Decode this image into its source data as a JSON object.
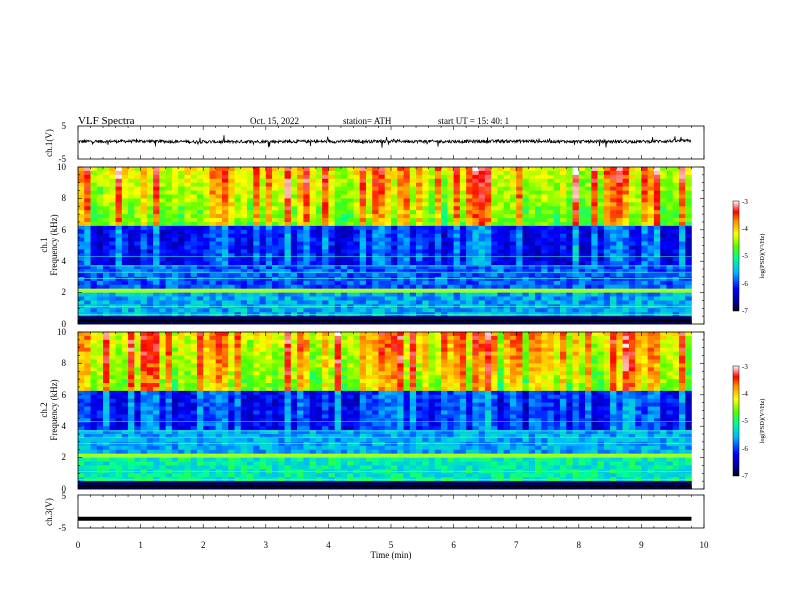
{
  "header": {
    "title": "VLF  Spectra",
    "date": "Oct. 15, 2022",
    "station": "station= ATH",
    "start": "start  UT  =    15: 40: 1"
  },
  "chart_data": [
    {
      "type": "line",
      "panel": "ch1-waveform",
      "ylabel": "ch.1(V)",
      "ylim": [
        -5,
        5
      ],
      "y_ticks": [
        "5",
        "-5"
      ],
      "x": [
        0,
        1,
        2,
        3,
        4,
        5,
        6,
        7,
        8,
        9,
        9.8
      ],
      "series": [
        {
          "values": [
            0.3,
            0.4,
            0.2,
            0.3,
            0.3,
            0.4,
            0.3,
            0.4,
            0.3,
            0.3,
            0.5
          ]
        }
      ],
      "xlim": [
        0,
        10
      ]
    },
    {
      "type": "heatmap",
      "panel": "ch1-spectrogram",
      "ylabel": "ch.1\nFrequency  (kHz)",
      "ylabel_lines": [
        "ch.1",
        "Frequency  (kHz)"
      ],
      "ylim": [
        0,
        10
      ],
      "y_ticks": [
        "0",
        "2",
        "4",
        "6",
        "8",
        "10"
      ],
      "xlim": [
        0,
        10
      ],
      "data_extent_min": 9.8,
      "colorbar": {
        "label": "log(PSD)(V²/Hz)",
        "ticks": [
          "-3",
          "-4",
          "-5",
          "-6",
          "-7"
        ],
        "range": [
          -7,
          -3
        ]
      }
    },
    {
      "type": "heatmap",
      "panel": "ch2-spectrogram",
      "ylabel": "ch.2\nFrequency  (kHz)",
      "ylabel_lines": [
        "ch.2",
        "Frequency  (kHz)"
      ],
      "ylim": [
        0,
        10
      ],
      "y_ticks": [
        "0",
        "2",
        "4",
        "6",
        "8",
        "10"
      ],
      "xlim": [
        0,
        10
      ],
      "data_extent_min": 9.8,
      "colorbar": {
        "label": "log(PSD)(V²/Hz)",
        "ticks": [
          "-3",
          "-4",
          "-5",
          "-6",
          "-7"
        ],
        "range": [
          -7,
          -3
        ]
      }
    },
    {
      "type": "line",
      "panel": "ch3-waveform",
      "ylabel": "ch.3(V)",
      "ylim": [
        -5,
        5
      ],
      "y_ticks": [
        "5",
        "-5"
      ],
      "x": [
        0,
        9.8
      ],
      "series": [
        {
          "values": [
            -2.2,
            -2.2
          ]
        }
      ],
      "xlim": [
        0,
        10
      ]
    }
  ],
  "xaxis": {
    "label": "Time  (min)",
    "ticks": [
      "0",
      "1",
      "2",
      "3",
      "4",
      "5",
      "6",
      "7",
      "8",
      "9",
      "10"
    ]
  }
}
